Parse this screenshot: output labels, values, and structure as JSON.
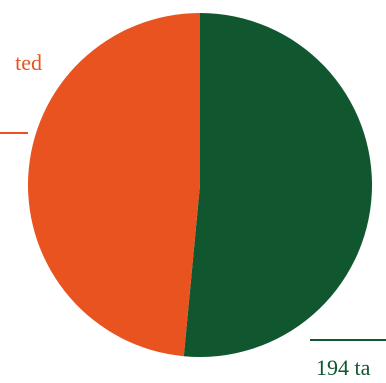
{
  "chart_data": {
    "type": "pie",
    "title": "",
    "slices": [
      {
        "label": "194 ta",
        "value": 51.5,
        "color": "#10572f"
      },
      {
        "label": "ted",
        "value": 48.5,
        "color": "#e8531f"
      }
    ],
    "start_angle_deg": 0,
    "direction": "clockwise"
  }
}
